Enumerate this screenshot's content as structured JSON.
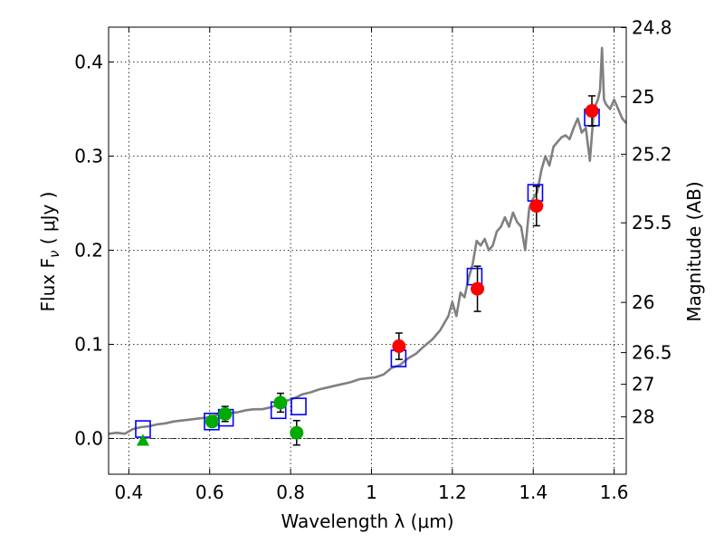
{
  "chart_data": {
    "type": "scatter",
    "xlabel": "Wavelength  λ (μm)",
    "ylabel": "Flux  F",
    "ylabel_sub": "ν",
    "ylabel_unit": "  ( μJy )",
    "right_label": "Magnitude (AB)",
    "xlim": [
      0.35,
      1.63
    ],
    "ylim": [
      -0.038,
      0.437
    ],
    "x_ticks": [
      0.4,
      0.6,
      0.8,
      1.0,
      1.2,
      1.4,
      1.6
    ],
    "x_tick_labels": [
      "0.4",
      "0.6",
      "0.8",
      "1",
      "1.2",
      "1.4",
      "1.6"
    ],
    "y_ticks": [
      0.0,
      0.1,
      0.2,
      0.3,
      0.4
    ],
    "y_tick_labels": [
      "0.0",
      "0.1",
      "0.2",
      "0.3",
      "0.4"
    ],
    "mag_ticks": [
      24.8,
      25,
      25.2,
      25.5,
      26,
      26.5,
      27,
      28
    ],
    "mag_tick_labels": [
      "24.8",
      "25",
      "25.2",
      "25.5",
      "26",
      "26.5",
      "27",
      "28"
    ],
    "grid": true,
    "colors": {
      "spectrum": "#808080",
      "red_points": "#ff0000",
      "green_points": "#00aa00",
      "model_boxes": "#0000ff",
      "errorbars": "#000000"
    },
    "series": [
      {
        "marker": "line",
        "x": [
          0.35,
          0.37,
          0.39,
          0.41,
          0.43,
          0.45,
          0.47,
          0.49,
          0.51,
          0.53,
          0.55,
          0.57,
          0.59,
          0.61,
          0.63,
          0.65,
          0.67,
          0.69,
          0.71,
          0.73,
          0.75,
          0.77,
          0.79,
          0.81,
          0.83,
          0.85,
          0.87,
          0.89,
          0.91,
          0.93,
          0.95,
          0.97,
          0.99,
          1.01,
          1.03,
          1.05,
          1.07,
          1.09,
          1.11,
          1.13,
          1.15,
          1.17,
          1.19,
          1.2,
          1.21,
          1.22,
          1.23,
          1.24,
          1.25,
          1.26,
          1.27,
          1.28,
          1.29,
          1.3,
          1.31,
          1.32,
          1.33,
          1.34,
          1.35,
          1.36,
          1.37,
          1.38,
          1.39,
          1.4,
          1.41,
          1.42,
          1.43,
          1.44,
          1.45,
          1.46,
          1.47,
          1.48,
          1.49,
          1.5,
          1.51,
          1.52,
          1.53,
          1.54,
          1.55,
          1.56,
          1.565,
          1.57,
          1.575,
          1.58,
          1.59,
          1.6,
          1.61,
          1.62,
          1.63
        ],
        "y": [
          0.005,
          0.006,
          0.005,
          0.01,
          0.012,
          0.013,
          0.015,
          0.016,
          0.018,
          0.019,
          0.02,
          0.021,
          0.022,
          0.024,
          0.026,
          0.027,
          0.028,
          0.03,
          0.031,
          0.031,
          0.033,
          0.036,
          0.04,
          0.043,
          0.047,
          0.049,
          0.052,
          0.054,
          0.056,
          0.058,
          0.06,
          0.063,
          0.064,
          0.065,
          0.068,
          0.075,
          0.078,
          0.085,
          0.09,
          0.098,
          0.105,
          0.115,
          0.13,
          0.145,
          0.13,
          0.155,
          0.15,
          0.17,
          0.185,
          0.21,
          0.205,
          0.212,
          0.2,
          0.205,
          0.22,
          0.225,
          0.235,
          0.225,
          0.24,
          0.23,
          0.225,
          0.2,
          0.245,
          0.255,
          0.262,
          0.285,
          0.3,
          0.29,
          0.31,
          0.315,
          0.32,
          0.322,
          0.318,
          0.33,
          0.34,
          0.325,
          0.33,
          0.295,
          0.35,
          0.36,
          0.37,
          0.415,
          0.36,
          0.355,
          0.35,
          0.36,
          0.35,
          0.34,
          0.335
        ]
      },
      {
        "marker": "red-circle",
        "x": [
          1.068,
          1.262,
          1.408,
          1.545
        ],
        "y": [
          0.098,
          0.159,
          0.247,
          0.348
        ],
        "yerr": [
          0.014,
          0.024,
          0.021,
          0.016
        ]
      },
      {
        "marker": "green-circle",
        "x": [
          0.606,
          0.638,
          0.775,
          0.815
        ],
        "y": [
          0.018,
          0.026,
          0.038,
          0.006
        ],
        "yerr": [
          0.005,
          0.008,
          0.01,
          0.013
        ]
      },
      {
        "marker": "green-triangle",
        "x": [
          0.435
        ],
        "y": [
          -0.002
        ]
      },
      {
        "marker": "blue-square",
        "x": [
          0.435,
          0.605,
          0.64,
          0.77,
          0.82,
          1.067,
          1.255,
          1.405,
          1.545
        ],
        "y": [
          0.01,
          0.018,
          0.022,
          0.03,
          0.034,
          0.085,
          0.172,
          0.261,
          0.341
        ]
      }
    ]
  }
}
